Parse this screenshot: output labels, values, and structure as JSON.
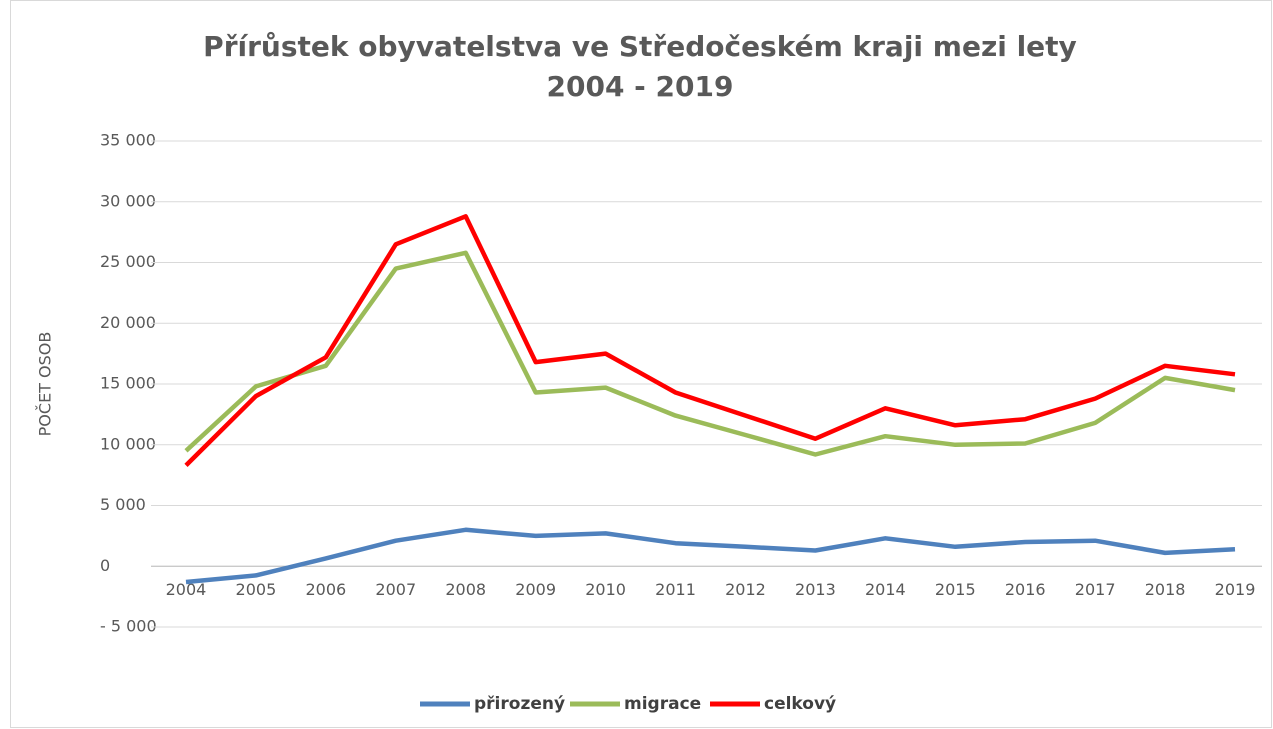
{
  "chart_data": {
    "type": "line",
    "title": [
      "Přírůstek obyvatelstva ve Středočeském kraji mezi lety",
      "2004 - 2019"
    ],
    "y_label": "POČET OSOB",
    "categories": [
      "2004",
      "2005",
      "2006",
      "2007",
      "2008",
      "2009",
      "2010",
      "2011",
      "2012",
      "2013",
      "2014",
      "2015",
      "2016",
      "2017",
      "2018",
      "2019"
    ],
    "series": [
      {
        "name": "přirozený",
        "color": "#4f81bd",
        "values": [
          -1300,
          -750,
          650,
          2100,
          3000,
          2500,
          2700,
          1900,
          1600,
          1300,
          2300,
          1600,
          2000,
          2100,
          1100,
          1400
        ]
      },
      {
        "name": "migrace",
        "color": "#9bbb59",
        "values": [
          9500,
          14800,
          16500,
          24500,
          25800,
          14300,
          14700,
          12400,
          10800,
          9200,
          10700,
          10000,
          10100,
          11800,
          15500,
          14500
        ]
      },
      {
        "name": "celkový",
        "color": "#ff0000",
        "values": [
          8300,
          14000,
          17200,
          26500,
          28800,
          16800,
          17500,
          14300,
          12400,
          10500,
          13000,
          11600,
          12100,
          13800,
          16500,
          15800
        ]
      }
    ],
    "ylim": [
      -5000,
      35000
    ],
    "yticks": [
      {
        "value": -5000,
        "label": "- 5 000"
      },
      0,
      {
        "value": 5000,
        "label": "5 000"
      },
      {
        "value": 10000,
        "label": "10 000"
      },
      {
        "value": 15000,
        "label": "15 000"
      },
      {
        "value": 20000,
        "label": "20 000"
      },
      {
        "value": 25000,
        "label": "25 000"
      },
      {
        "value": 30000,
        "label": "30 000"
      },
      {
        "value": 35000,
        "label": "35 000"
      }
    ],
    "grid": true,
    "legend": "bottom"
  }
}
